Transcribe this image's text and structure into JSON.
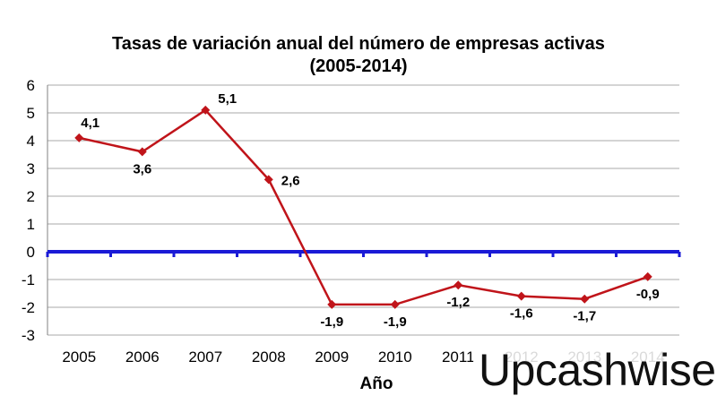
{
  "chart_data": {
    "type": "line",
    "title": [
      "Tasas de variación anual del número de empresas activas",
      "(2005-2014)"
    ],
    "xlabel": "Año",
    "ylabel": "",
    "categories": [
      "2005",
      "2006",
      "2007",
      "2008",
      "2009",
      "2010",
      "2011",
      "2012",
      "2013",
      "2014"
    ],
    "series": [
      {
        "values": [
          4.1,
          3.6,
          5.1,
          2.6,
          -1.9,
          -1.9,
          -1.2,
          -1.6,
          -1.7,
          -0.9
        ],
        "labels": [
          "4,1",
          "3,6",
          "5,1",
          "2,6",
          "-1,9",
          "-1,9",
          "-1,2",
          "-1,6",
          "-1,7",
          "-0,9"
        ],
        "color": "#c0141a"
      }
    ],
    "ylim": [
      -3,
      6
    ],
    "yticks": [
      6,
      5,
      4,
      3,
      2,
      1,
      0,
      -1,
      -2,
      -3
    ],
    "grid": true,
    "zero_line_color": "#1a1ad6"
  },
  "watermark": "Upcashwise"
}
